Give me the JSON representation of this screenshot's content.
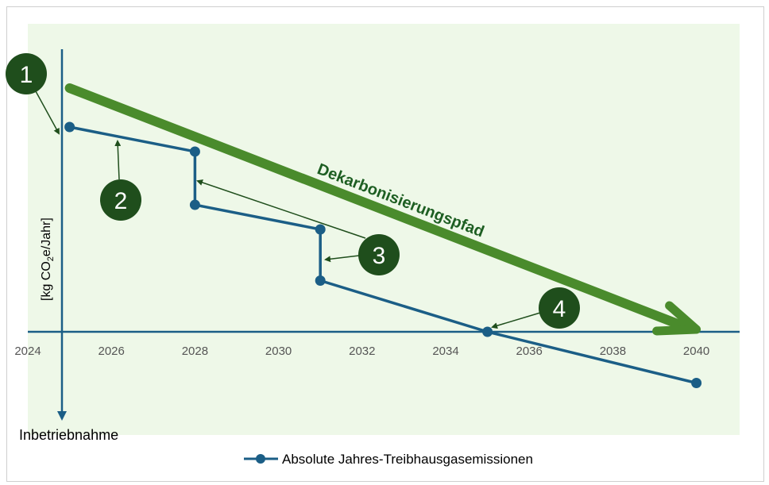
{
  "chart_data": {
    "type": "line",
    "xlabel": "Inbetriebnahme",
    "ylabel": "[kg CO₂e/Jahr]",
    "xlim": [
      2024,
      2041
    ],
    "x_ticks": [
      "2024",
      "2026",
      "2028",
      "2030",
      "2032",
      "2034",
      "2036",
      "2038",
      "2040"
    ],
    "series": [
      {
        "name": "Absolute Jahres-Treibhausgasemissionen",
        "color": "#1b5e86",
        "points": [
          {
            "x": 2025,
            "y": 100
          },
          {
            "x": 2028,
            "y": 88
          },
          {
            "x": 2028,
            "y": 62
          },
          {
            "x": 2031,
            "y": 50
          },
          {
            "x": 2031,
            "y": 25
          },
          {
            "x": 2035,
            "y": 0
          },
          {
            "x": 2040,
            "y": -25
          }
        ]
      }
    ],
    "decarbonization_path": {
      "label": "Dekarbonisierungspfad",
      "color": "#4a8b2c",
      "start": {
        "x": 2025,
        "y": 120
      },
      "end": {
        "x": 2040,
        "y": 0
      }
    },
    "callouts": [
      "1",
      "2",
      "3",
      "4"
    ],
    "legend_position": "bottom"
  },
  "colors": {
    "series": "#1b5e86",
    "path": "#4a8b2c",
    "callout_bg": "#1f4e1c",
    "plot_bg": "#eef8e8"
  }
}
